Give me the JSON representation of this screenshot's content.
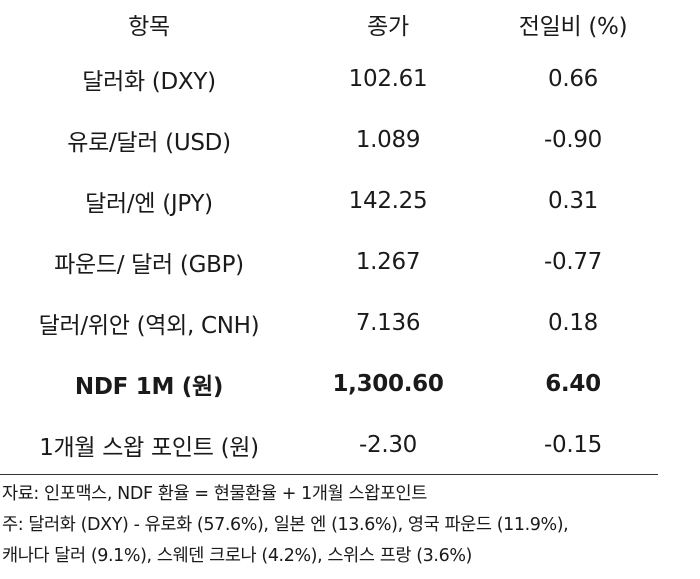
{
  "table": {
    "headers": [
      "항목",
      "종가",
      "전일비 (%)"
    ],
    "rows": [
      {
        "item": "달러화 (DXY)",
        "close": "102.61",
        "change": "0.66"
      },
      {
        "item": "유로/달러 (USD)",
        "close": "1.089",
        "change": "-0.90"
      },
      {
        "item": "달러/엔 (JPY)",
        "close": "142.25",
        "change": "0.31"
      },
      {
        "item": "파운드/ 달러 (GBP)",
        "close": "1.267",
        "change": "-0.77"
      },
      {
        "item": "달러/위안 (역외, CNH)",
        "close": "7.136",
        "change": "0.18"
      },
      {
        "item": "NDF 1M (원)",
        "close": "1,300.60",
        "change": "6.40"
      },
      {
        "item": "1개월 스왑 포인트 (원)",
        "close": "-2.30",
        "change": "-0.15"
      }
    ]
  },
  "notes": {
    "source": "자료: 인포맥스, NDF 환율 = 현물환율 + 1개월 스왑포인트",
    "note_line1": "주: 달러화 (DXY) - 유로화 (57.6%), 일본 엔 (13.6%), 영국 파운드 (11.9%),",
    "note_line2": "캐나다 달러 (9.1%), 스웨덴 크로나 (4.2%), 스위스 프랑 (3.6%)"
  }
}
